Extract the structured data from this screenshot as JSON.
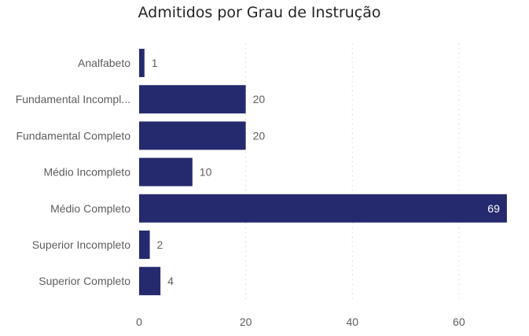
{
  "chart_data": {
    "type": "bar",
    "orientation": "horizontal",
    "title": "Admitidos por Grau de Instrução",
    "categories": [
      "Analfabeto",
      "Fundamental Incompl...",
      "Fundamental Completo",
      "Médio Incompleto",
      "Médio Completo",
      "Superior Incompleto",
      "Superior Completo"
    ],
    "values": [
      1,
      20,
      20,
      10,
      69,
      2,
      4
    ],
    "xlim": [
      0,
      73
    ],
    "xticks": [
      0,
      20,
      40,
      60
    ],
    "grid": true,
    "bar_color": "#252A6E",
    "xlabel": "",
    "ylabel": ""
  }
}
